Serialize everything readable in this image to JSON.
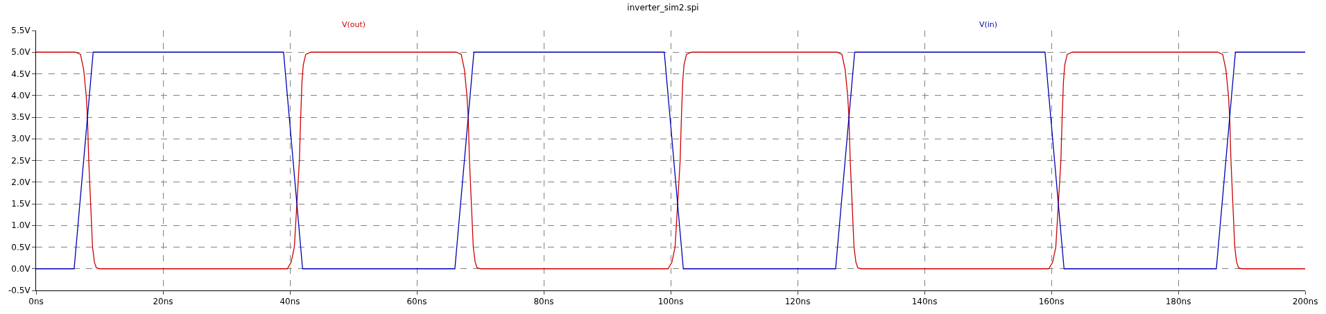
{
  "chart_data": {
    "type": "line",
    "title": "inverter_sim2.spi",
    "xlim": [
      0,
      200
    ],
    "ylim": [
      -0.5,
      5.5
    ],
    "xticks": [
      {
        "value": 0,
        "label": "0ns"
      },
      {
        "value": 20,
        "label": "20ns"
      },
      {
        "value": 40,
        "label": "40ns"
      },
      {
        "value": 60,
        "label": "60ns"
      },
      {
        "value": 80,
        "label": "80ns"
      },
      {
        "value": 100,
        "label": "100ns"
      },
      {
        "value": 120,
        "label": "120ns"
      },
      {
        "value": 140,
        "label": "140ns"
      },
      {
        "value": 160,
        "label": "160ns"
      },
      {
        "value": 180,
        "label": "180ns"
      },
      {
        "value": 200,
        "label": "200ns"
      }
    ],
    "yticks": [
      {
        "value": -0.5,
        "label": "-0.5V"
      },
      {
        "value": 0,
        "label": "0.0V"
      },
      {
        "value": 0.5,
        "label": "0.5V"
      },
      {
        "value": 1,
        "label": "1.0V"
      },
      {
        "value": 1.5,
        "label": "1.5V"
      },
      {
        "value": 2,
        "label": "2.0V"
      },
      {
        "value": 2.5,
        "label": "2.5V"
      },
      {
        "value": 3,
        "label": "3.0V"
      },
      {
        "value": 3.5,
        "label": "3.5V"
      },
      {
        "value": 4,
        "label": "4.0V"
      },
      {
        "value": 4.5,
        "label": "4.5V"
      },
      {
        "value": 5,
        "label": "5.0V"
      },
      {
        "value": 5.5,
        "label": "5.5V"
      }
    ],
    "grid": true,
    "marker": "none",
    "line_style": "solid",
    "series": [
      {
        "name": "V(out)",
        "color": "#cc0000",
        "x": [
          0,
          6.2,
          7.0,
          7.5,
          7.9,
          8.1,
          8.3,
          8.6,
          8.9,
          9.2,
          9.5,
          10.0,
          39.6,
          40.2,
          40.7,
          41.1,
          41.5,
          41.7,
          41.9,
          42.1,
          42.5,
          43.3,
          66.2,
          67.0,
          67.5,
          67.9,
          68.1,
          68.3,
          68.6,
          68.9,
          69.2,
          69.5,
          70.0,
          99.6,
          100.2,
          100.7,
          101.1,
          101.5,
          101.7,
          101.9,
          102.1,
          102.5,
          103.3,
          126.2,
          127.0,
          127.5,
          127.9,
          128.1,
          128.3,
          128.6,
          128.9,
          129.2,
          129.5,
          130.0,
          159.6,
          160.2,
          160.7,
          161.1,
          161.5,
          161.7,
          161.9,
          162.1,
          162.5,
          163.3,
          186.2,
          187.0,
          187.5,
          187.9,
          188.1,
          188.3,
          188.6,
          188.9,
          189.2,
          189.5,
          190.0,
          200
        ],
        "values": [
          5,
          5,
          4.95,
          4.6,
          4.0,
          3.5,
          2.5,
          1.5,
          0.5,
          0.15,
          0.02,
          0,
          0,
          0.15,
          0.5,
          1.5,
          2.5,
          3.5,
          4.3,
          4.7,
          4.95,
          5,
          5,
          4.95,
          4.6,
          4.0,
          3.5,
          2.5,
          1.5,
          0.5,
          0.15,
          0.02,
          0,
          0,
          0.15,
          0.5,
          1.5,
          2.5,
          3.5,
          4.3,
          4.7,
          4.95,
          5,
          5,
          4.95,
          4.6,
          4.0,
          3.5,
          2.5,
          1.5,
          0.5,
          0.15,
          0.02,
          0,
          0,
          0.15,
          0.5,
          1.5,
          2.5,
          3.5,
          4.3,
          4.7,
          4.95,
          5,
          5,
          4.95,
          4.6,
          4.0,
          3.5,
          2.5,
          1.5,
          0.5,
          0.15,
          0.02,
          0,
          0
        ]
      },
      {
        "name": "V(in)",
        "color": "#0000b0",
        "x": [
          0,
          6,
          9,
          39,
          42,
          66,
          69,
          99,
          102,
          126,
          129,
          159,
          162,
          186,
          189,
          200
        ],
        "values": [
          0,
          0,
          5,
          5,
          0,
          0,
          5,
          5,
          0,
          0,
          5,
          5,
          0,
          0,
          5,
          5
        ]
      }
    ]
  }
}
